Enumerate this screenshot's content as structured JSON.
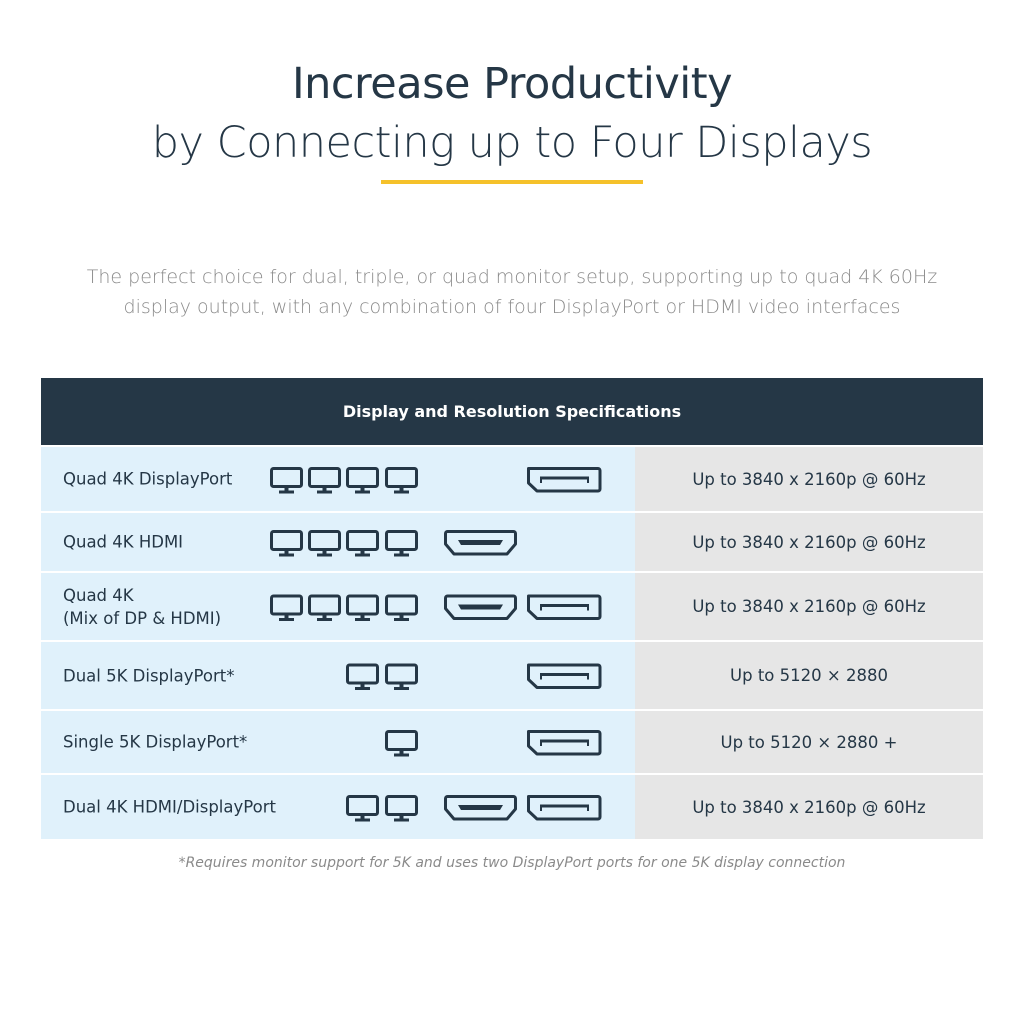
{
  "title": {
    "line1": "Increase Productivity",
    "line2": "by Connecting up to Four Displays"
  },
  "accent_color": "#f5c12a",
  "header_color": "#253746",
  "subtitle": "The perfect choice for dual, triple, or quad monitor setup, supporting up to quad 4K 60Hz display output, with any combination of four DisplayPort or HDMI video interfaces",
  "table": {
    "header": "Display and Resolution Specifications",
    "rows": [
      {
        "label": "Quad 4K DisplayPort",
        "monitors": 4,
        "ports": [
          "displayport"
        ],
        "spec": "Up to 3840 x 2160p @ 60Hz"
      },
      {
        "label": "Quad 4K HDMI",
        "monitors": 4,
        "ports": [
          "hdmi"
        ],
        "spec": "Up to 3840 x 2160p @ 60Hz"
      },
      {
        "label": "Quad 4K\n(Mix of DP & HDMI)",
        "monitors": 4,
        "ports": [
          "hdmi",
          "displayport"
        ],
        "spec": "Up to 3840 x 2160p @ 60Hz"
      },
      {
        "label": "Dual 5K DisplayPort*",
        "monitors": 2,
        "ports": [
          "displayport"
        ],
        "spec": "Up to 5120 × 2880"
      },
      {
        "label": "Single 5K DisplayPort*",
        "monitors": 1,
        "ports": [
          "displayport"
        ],
        "spec": "Up to 5120 × 2880 +"
      },
      {
        "label": "Dual 4K HDMI/DisplayPort",
        "monitors": 2,
        "ports": [
          "hdmi",
          "displayport"
        ],
        "spec": "Up to 3840 x 2160p @ 60Hz"
      }
    ]
  },
  "footnote": "*Requires monitor support for 5K and uses two DisplayPort ports for one 5K display connection"
}
